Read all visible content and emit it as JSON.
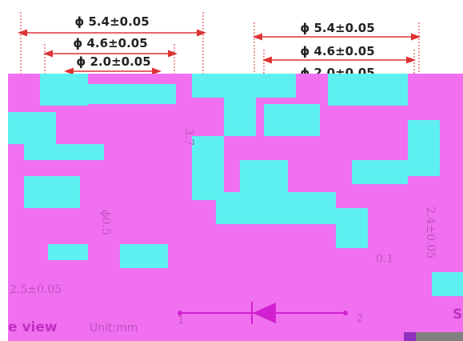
{
  "dimensions_left": [
    "ϕ 5.4±0.05",
    "ϕ 4.6±0.05",
    "ϕ 2.0±0.05"
  ],
  "dimensions_right": [
    "ϕ 5.4±0.05",
    "ϕ 4.6±0.05",
    "ϕ 2.0±0.05"
  ],
  "labels": {
    "height": "3.7",
    "pin_diameter": "ϕ0.5",
    "pitch": "2.5±0.05",
    "width": "2.4±0.05",
    "offset": "0.1",
    "view": "e view",
    "unit": "Unit:mm",
    "pin1": "1",
    "pin2": "2",
    "side": "S"
  }
}
